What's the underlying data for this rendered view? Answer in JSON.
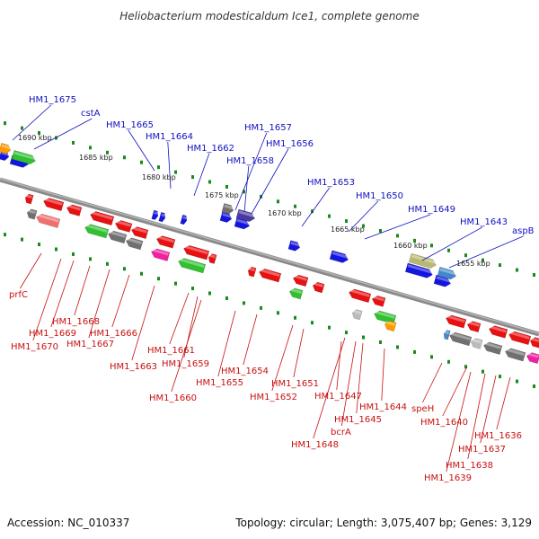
{
  "title": "Heliobacterium modesticaldum Ice1, complete genome",
  "footer": {
    "accession": "Accession: NC_010337",
    "summary": "Topology: circular; Length: 3,075,407 bp; Genes: 3,129"
  },
  "kbp_marks": [
    "1690 kbp",
    "1685 kbp",
    "1680 kbp",
    "1675 kbp",
    "1670 kbp",
    "1665 kbp",
    "1660 kbp",
    "1655 kbp"
  ],
  "top_labels": [
    "HM1_1675",
    "cstA",
    "HM1_1665",
    "HM1_1664",
    "HM1_1662",
    "HM1_1657",
    "HM1_1658",
    "HM1_1656",
    "HM1_1653",
    "HM1_1650",
    "HM1_1649",
    "HM1_1643",
    "aspB"
  ],
  "bottom_labels": [
    "prfC",
    "HM1_1670",
    "HM1_1669",
    "HM1_1668",
    "HM1_1667",
    "HM1_1666",
    "HM1_1663",
    "HM1_1661",
    "HM1_1659",
    "HM1_1660",
    "HM1_1654",
    "HM1_1655",
    "HM1_1651",
    "HM1_1652",
    "HM1_1647",
    "HM1_1648",
    "HM1_1645",
    "bcrA",
    "HM1_1644",
    "speH",
    "HM1_1640",
    "HM1_1636",
    "HM1_1637",
    "HM1_1638",
    "HM1_1639"
  ],
  "colors": {
    "forward": "#1515e0",
    "reverse": "#e81010",
    "backbone": "#8a8a8a",
    "tick": "#1a8a1a",
    "label_top": "#1010c0",
    "label_bottom": "#c81010"
  }
}
